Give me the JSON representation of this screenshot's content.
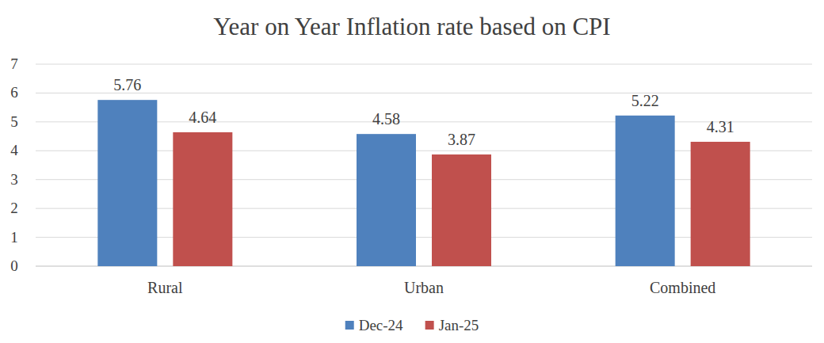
{
  "chart_data": {
    "type": "bar",
    "title": "Year on Year Inflation rate based on CPI",
    "categories": [
      "Rural",
      "Urban",
      "Combined"
    ],
    "series": [
      {
        "name": "Dec-24",
        "color": "#4f81bd",
        "values": [
          5.76,
          4.58,
          5.22
        ]
      },
      {
        "name": "Jan-25",
        "color": "#c0504d",
        "values": [
          4.64,
          3.87,
          4.31
        ]
      }
    ],
    "ylim": [
      0,
      7
    ],
    "yticks": [
      0,
      1,
      2,
      3,
      4,
      5,
      6,
      7
    ],
    "grid": true,
    "data_labels": true,
    "legend": "bottom"
  }
}
